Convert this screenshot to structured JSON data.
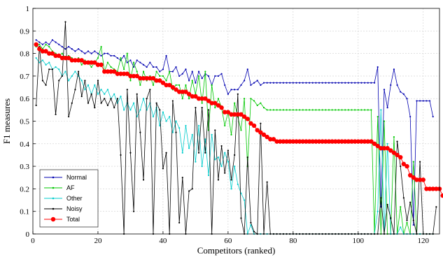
{
  "chart_data": {
    "type": "line",
    "title": "",
    "xlabel": "Competitors (ranked)",
    "ylabel": "F1 measures",
    "xlim": [
      0,
      125
    ],
    "ylim": [
      0,
      1
    ],
    "xticks": [
      0,
      20,
      40,
      60,
      80,
      100,
      120
    ],
    "yticks": [
      0,
      0.1,
      0.2,
      0.3,
      0.4,
      0.5,
      0.6,
      0.7,
      0.8,
      0.9,
      1
    ],
    "ytick_labels": [
      "0",
      "0.1",
      "0.2",
      "0.3",
      "0.4",
      "0.5",
      "0.6",
      "0.7",
      "0.8",
      "0.9",
      "1"
    ],
    "grid": true,
    "legend_position": "lower-left",
    "series": [
      {
        "name": "Normal",
        "color": "#0000b0",
        "marker": "dot",
        "values": [
          0.86,
          0.85,
          0.84,
          0.85,
          0.84,
          0.86,
          0.85,
          0.84,
          0.83,
          0.82,
          0.83,
          0.82,
          0.81,
          0.82,
          0.81,
          0.8,
          0.81,
          0.8,
          0.81,
          0.8,
          0.79,
          0.8,
          0.8,
          0.79,
          0.79,
          0.78,
          0.77,
          0.79,
          0.76,
          0.77,
          0.74,
          0.77,
          0.76,
          0.75,
          0.74,
          0.76,
          0.74,
          0.74,
          0.72,
          0.73,
          0.79,
          0.72,
          0.72,
          0.74,
          0.7,
          0.71,
          0.73,
          0.68,
          0.72,
          0.67,
          0.72,
          0.69,
          0.71,
          0.7,
          0.66,
          0.7,
          0.7,
          0.71,
          0.66,
          0.62,
          0.64,
          0.64,
          0.64,
          0.66,
          0.68,
          0.73,
          0.66,
          0.67,
          0.68,
          0.66,
          0.67,
          0.67,
          0.67,
          0.67,
          0.67,
          0.67,
          0.67,
          0.67,
          0.67,
          0.67,
          0.67,
          0.67,
          0.67,
          0.67,
          0.67,
          0.67,
          0.67,
          0.67,
          0.67,
          0.67,
          0.67,
          0.67,
          0.67,
          0.67,
          0.67,
          0.67,
          0.67,
          0.67,
          0.67,
          0.67,
          0.67,
          0.67,
          0.67,
          0.67,
          0.67,
          0.74,
          0.12,
          0.64,
          0.56,
          0.66,
          0.73,
          0.66,
          0.63,
          0.62,
          0.6,
          0.52,
          0.04,
          0.59,
          0.59,
          0.59,
          0.59,
          0.59,
          0.52
        ]
      },
      {
        "name": "AF",
        "color": "#00c800",
        "marker": "dot",
        "values": [
          0.83,
          0.84,
          0.82,
          0.84,
          0.83,
          0.81,
          0.8,
          0.79,
          0.8,
          0.78,
          0.79,
          0.78,
          0.77,
          0.78,
          0.75,
          0.77,
          0.76,
          0.74,
          0.76,
          0.78,
          0.83,
          0.72,
          0.76,
          0.74,
          0.73,
          0.72,
          0.78,
          0.73,
          0.8,
          0.68,
          0.76,
          0.72,
          0.66,
          0.72,
          0.68,
          0.7,
          0.66,
          0.72,
          0.7,
          0.7,
          0.68,
          0.72,
          0.64,
          0.66,
          0.66,
          0.6,
          0.66,
          0.6,
          0.68,
          0.62,
          0.7,
          0.58,
          0.72,
          0.46,
          0.66,
          0.56,
          0.6,
          0.56,
          0.48,
          0.54,
          0.44,
          0.58,
          0.52,
          0.46,
          0.6,
          0.3,
          0.6,
          0.59,
          0.57,
          0.58,
          0.56,
          0.55,
          0.55,
          0.55,
          0.55,
          0.55,
          0.55,
          0.55,
          0.55,
          0.55,
          0.55,
          0.55,
          0.55,
          0.55,
          0.55,
          0.55,
          0.55,
          0.55,
          0.55,
          0.55,
          0.55,
          0.55,
          0.55,
          0.55,
          0.55,
          0.55,
          0.55,
          0.55,
          0.55,
          0.55,
          0.55,
          0.55,
          0.55,
          0.55,
          0.0,
          0.52,
          0.0,
          0.5,
          0.0,
          0.0,
          0.43,
          0.0,
          0.12,
          0.0,
          0.05,
          0.0,
          0.32,
          0.0,
          0.0,
          0.0,
          0.0,
          0.0,
          0.0
        ]
      },
      {
        "name": "Other",
        "color": "#00cccc",
        "marker": "dot",
        "values": [
          0.78,
          0.76,
          0.77,
          0.75,
          0.76,
          0.73,
          0.74,
          0.73,
          0.7,
          0.72,
          0.68,
          0.7,
          0.72,
          0.7,
          0.68,
          0.64,
          0.66,
          0.62,
          0.66,
          0.62,
          0.64,
          0.62,
          0.64,
          0.6,
          0.62,
          0.58,
          0.61,
          0.55,
          0.58,
          0.55,
          0.58,
          0.52,
          0.55,
          0.6,
          0.55,
          0.58,
          0.52,
          0.56,
          0.48,
          0.54,
          0.5,
          0.52,
          0.45,
          0.5,
          0.47,
          0.36,
          0.48,
          0.38,
          0.44,
          0.32,
          0.48,
          0.3,
          0.42,
          0.26,
          0.44,
          0.33,
          0.34,
          0.3,
          0.36,
          0.32,
          0.2,
          0.3,
          0.22,
          0.18,
          0.15,
          0.0,
          0.04,
          0.0,
          0.0,
          0.0,
          0.0,
          0.0,
          0.0,
          0.0,
          0.0,
          0.0,
          0.0,
          0.0,
          0.0,
          0.0,
          0.0,
          0.0,
          0.0,
          0.0,
          0.0,
          0.0,
          0.0,
          0.0,
          0.0,
          0.0,
          0.0,
          0.0,
          0.0,
          0.0,
          0.0,
          0.0,
          0.0,
          0.0,
          0.0,
          0.0,
          0.0,
          0.0,
          0.0,
          0.0,
          0.0,
          0.1,
          0.55,
          0.0,
          0.4,
          0.0,
          0.0,
          0.0,
          0.03,
          0.0,
          0.0,
          0.0,
          0.0,
          0.0,
          0.0,
          0.0,
          0.0,
          0.0,
          0.0
        ]
      },
      {
        "name": "Noisy",
        "color": "#000000",
        "marker": "dot",
        "values": [
          0.57,
          0.83,
          0.68,
          0.66,
          0.73,
          0.73,
          0.53,
          0.68,
          0.7,
          0.94,
          0.52,
          0.58,
          0.64,
          0.72,
          0.61,
          0.68,
          0.58,
          0.62,
          0.56,
          0.68,
          0.58,
          0.6,
          0.57,
          0.6,
          0.56,
          0.6,
          0.35,
          0.0,
          0.64,
          0.36,
          0.1,
          0.62,
          0.45,
          0.24,
          0.6,
          0.64,
          0.0,
          0.58,
          0.55,
          0.29,
          0.36,
          0.0,
          0.59,
          0.45,
          0.05,
          0.25,
          0.0,
          0.19,
          0.2,
          0.56,
          0.36,
          0.56,
          0.36,
          0.55,
          0.0,
          0.46,
          0.24,
          0.39,
          0.27,
          0.37,
          0.24,
          0.35,
          0.62,
          0.07,
          0.0,
          0.34,
          0.05,
          0.01,
          0.0,
          0.49,
          0.0,
          0.23,
          0.0,
          0.0,
          0.0,
          0.0,
          0.0,
          0.0,
          0.0,
          0.0,
          0.0,
          0.0,
          0.0,
          0.0,
          0.0,
          0.0,
          0.0,
          0.0,
          0.0,
          0.0,
          0.0,
          0.0,
          0.0,
          0.0,
          0.0,
          0.0,
          0.0,
          0.0,
          0.0,
          0.0,
          0.0,
          0.0,
          0.0,
          0.0,
          0.0,
          0.0,
          0.16,
          0.0,
          0.13,
          0.07,
          0.0,
          0.41,
          0.3,
          0.16,
          0.06,
          0.14,
          0.06,
          0.0,
          0.32,
          0.0,
          0.0,
          0.0,
          0.0,
          0.12
        ]
      },
      {
        "name": "Total",
        "color": "#ff0000",
        "marker": "circle",
        "values": [
          0.84,
          0.82,
          0.81,
          0.81,
          0.8,
          0.8,
          0.79,
          0.79,
          0.78,
          0.78,
          0.78,
          0.77,
          0.77,
          0.77,
          0.77,
          0.76,
          0.76,
          0.76,
          0.76,
          0.75,
          0.75,
          0.72,
          0.72,
          0.72,
          0.72,
          0.71,
          0.71,
          0.71,
          0.71,
          0.7,
          0.7,
          0.7,
          0.69,
          0.69,
          0.69,
          0.69,
          0.69,
          0.68,
          0.68,
          0.67,
          0.66,
          0.66,
          0.65,
          0.64,
          0.63,
          0.63,
          0.63,
          0.62,
          0.61,
          0.61,
          0.6,
          0.6,
          0.6,
          0.59,
          0.58,
          0.58,
          0.57,
          0.56,
          0.54,
          0.54,
          0.53,
          0.53,
          0.53,
          0.53,
          0.52,
          0.51,
          0.49,
          0.48,
          0.46,
          0.45,
          0.44,
          0.43,
          0.42,
          0.42,
          0.41,
          0.41,
          0.41,
          0.41,
          0.41,
          0.41,
          0.41,
          0.41,
          0.41,
          0.41,
          0.41,
          0.41,
          0.41,
          0.41,
          0.41,
          0.41,
          0.41,
          0.41,
          0.41,
          0.41,
          0.41,
          0.41,
          0.41,
          0.41,
          0.41,
          0.41,
          0.41,
          0.41,
          0.41,
          0.41,
          0.4,
          0.39,
          0.38,
          0.38,
          0.38,
          0.37,
          0.36,
          0.35,
          0.34,
          0.31,
          0.3,
          0.26,
          0.25,
          0.24,
          0.24,
          0.24,
          0.2,
          0.2,
          0.2,
          0.2,
          0.2,
          0.17
        ]
      }
    ]
  }
}
